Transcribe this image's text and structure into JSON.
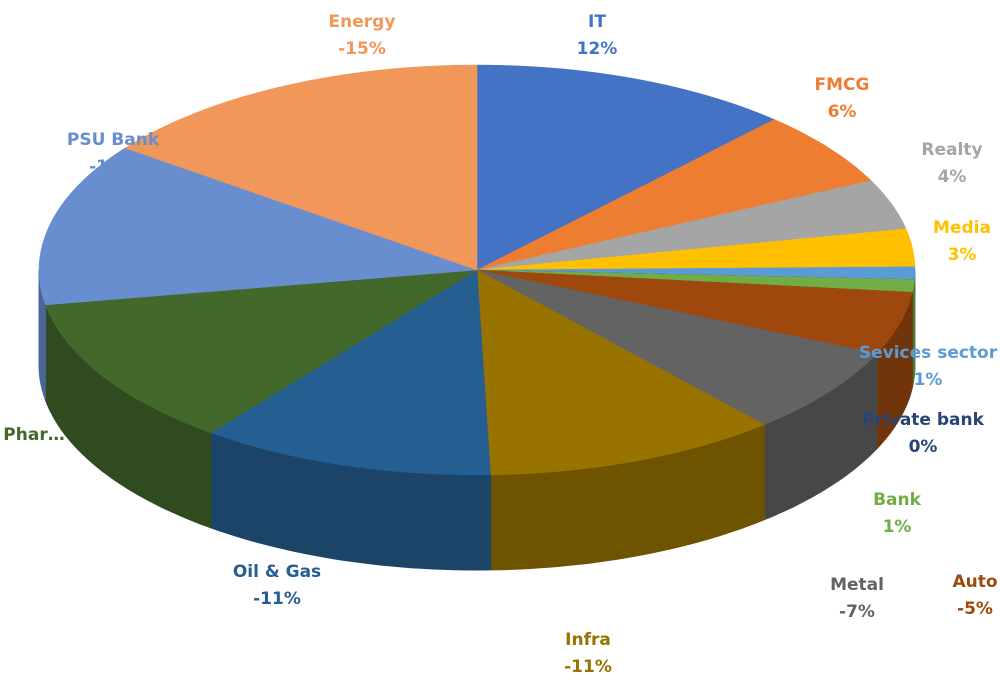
{
  "chart_data": {
    "type": "pie",
    "categories": [
      "IT",
      "FMCG",
      "Realty",
      "Media",
      "Sevices sector",
      "Private bank",
      "Bank",
      "Auto",
      "Metal",
      "Infra",
      "Oil & Gas",
      "Phar…",
      "PSU Bank",
      "Energy"
    ],
    "values": [
      12,
      6,
      4,
      3,
      1,
      0,
      1,
      -5,
      -7,
      -11,
      -11,
      -12,
      -13,
      -15
    ],
    "value_labels": [
      "12%",
      "6%",
      "4%",
      "3%",
      "1%",
      "0%",
      "1%",
      "-5%",
      "-7%",
      "-11%",
      "-11%",
      null,
      "-13%",
      "-15%"
    ],
    "colors": [
      "#4472c4",
      "#ed7d31",
      "#a5a5a5",
      "#ffc000",
      "#5b9bd5",
      "#264478",
      "#70ad47",
      "#9e480e",
      "#636363",
      "#997300",
      "#255e91",
      "#43682b",
      "#698ed0",
      "#f1975a"
    ]
  }
}
